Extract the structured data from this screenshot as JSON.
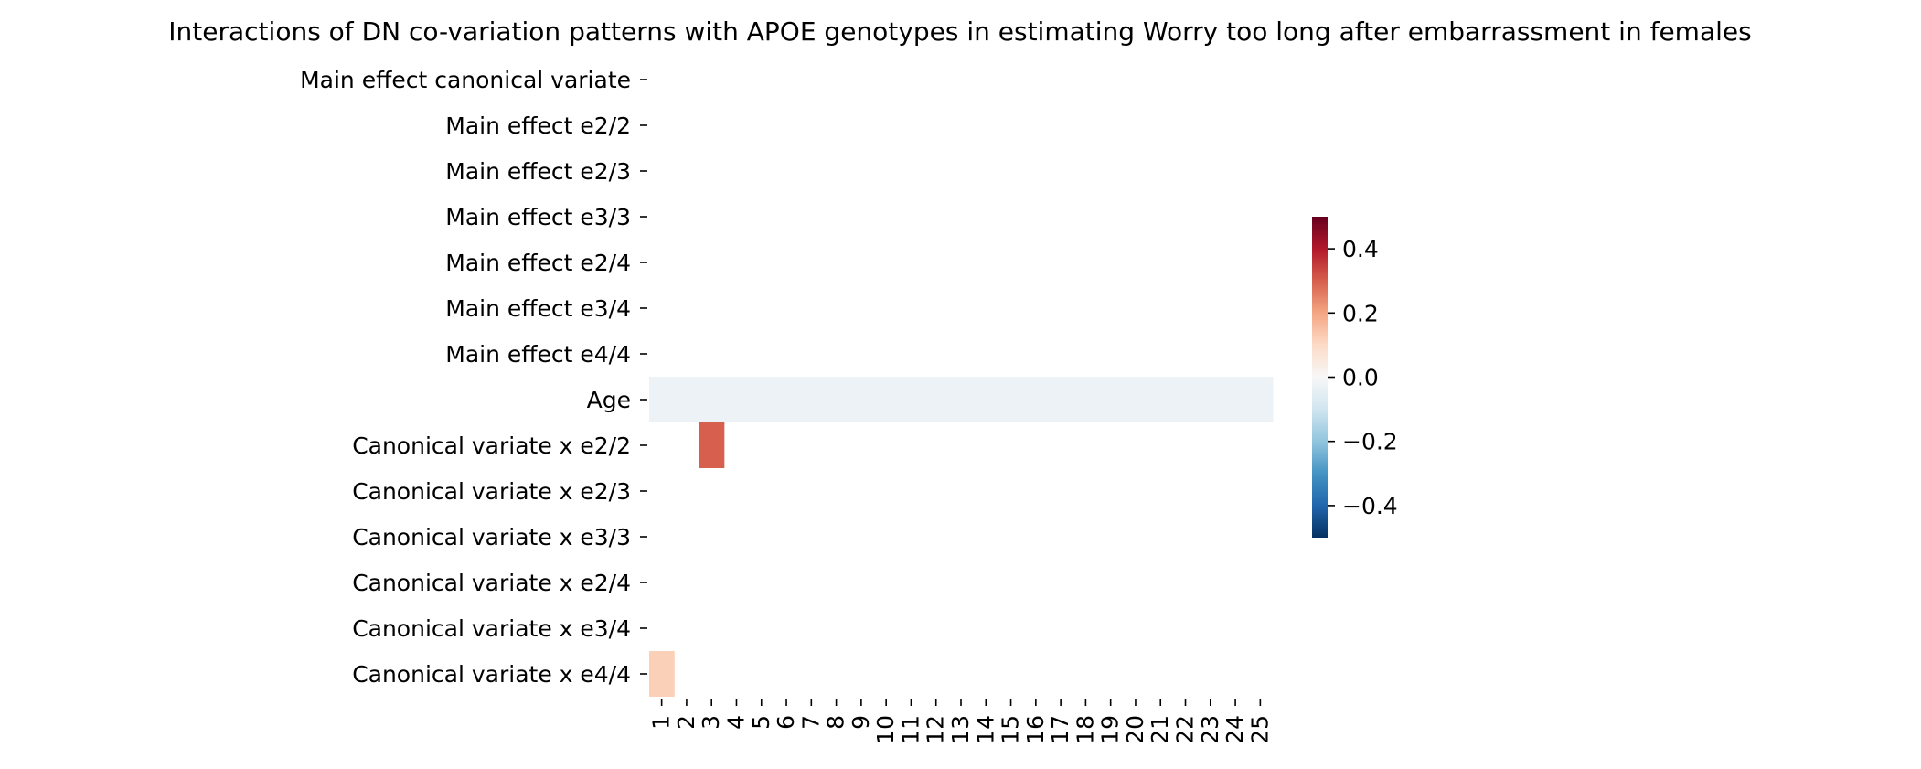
{
  "chart_data": {
    "type": "heatmap",
    "title": "Interactions of DN co-variation patterns with APOE genotypes in estimating Worry too long after embarrassment in females",
    "xlabel": "",
    "ylabel": "",
    "x_categories": [
      "1",
      "2",
      "3",
      "4",
      "5",
      "6",
      "7",
      "8",
      "9",
      "10",
      "11",
      "12",
      "13",
      "14",
      "15",
      "16",
      "17",
      "18",
      "19",
      "20",
      "21",
      "22",
      "23",
      "24",
      "25"
    ],
    "y_categories": [
      "Main effect canonical variate",
      "Main effect e2/2",
      "Main effect e2/3",
      "Main effect e3/3",
      "Main effect e2/4",
      "Main effect e3/4",
      "Main effect e4/4",
      "Age",
      "Canonical variate x e2/2",
      "Canonical variate x e2/3",
      "Canonical variate x e3/3",
      "Canonical variate x e2/4",
      "Canonical variate x e3/4",
      "Canonical variate x e4/4"
    ],
    "cells": [
      {
        "row": "Age",
        "col": "1",
        "value": -0.03
      },
      {
        "row": "Age",
        "col": "2",
        "value": -0.03
      },
      {
        "row": "Age",
        "col": "3",
        "value": -0.03
      },
      {
        "row": "Age",
        "col": "4",
        "value": -0.03
      },
      {
        "row": "Age",
        "col": "5",
        "value": -0.03
      },
      {
        "row": "Age",
        "col": "6",
        "value": -0.03
      },
      {
        "row": "Age",
        "col": "7",
        "value": -0.03
      },
      {
        "row": "Age",
        "col": "8",
        "value": -0.03
      },
      {
        "row": "Age",
        "col": "9",
        "value": -0.03
      },
      {
        "row": "Age",
        "col": "10",
        "value": -0.03
      },
      {
        "row": "Age",
        "col": "11",
        "value": -0.03
      },
      {
        "row": "Age",
        "col": "12",
        "value": -0.03
      },
      {
        "row": "Age",
        "col": "13",
        "value": -0.03
      },
      {
        "row": "Age",
        "col": "14",
        "value": -0.03
      },
      {
        "row": "Age",
        "col": "15",
        "value": -0.03
      },
      {
        "row": "Age",
        "col": "16",
        "value": -0.03
      },
      {
        "row": "Age",
        "col": "17",
        "value": -0.03
      },
      {
        "row": "Age",
        "col": "18",
        "value": -0.03
      },
      {
        "row": "Age",
        "col": "19",
        "value": -0.03
      },
      {
        "row": "Age",
        "col": "20",
        "value": -0.03
      },
      {
        "row": "Age",
        "col": "21",
        "value": -0.03
      },
      {
        "row": "Age",
        "col": "22",
        "value": -0.03
      },
      {
        "row": "Age",
        "col": "23",
        "value": -0.03
      },
      {
        "row": "Age",
        "col": "24",
        "value": -0.03
      },
      {
        "row": "Age",
        "col": "25",
        "value": -0.03
      },
      {
        "row": "Canonical variate x e2/2",
        "col": "3",
        "value": 0.3
      },
      {
        "row": "Canonical variate x e4/4",
        "col": "1",
        "value": 0.12
      }
    ],
    "colorbar": {
      "colormap": "RdBu_r",
      "vmin": -0.5,
      "vmax": 0.5,
      "ticks": [
        0.4,
        0.2,
        0.0,
        -0.2,
        -0.4
      ],
      "tick_labels": [
        "0.4",
        "0.2",
        "0.0",
        "−0.2",
        "−0.4"
      ]
    },
    "grid": false,
    "legend": "colorbar-right"
  }
}
